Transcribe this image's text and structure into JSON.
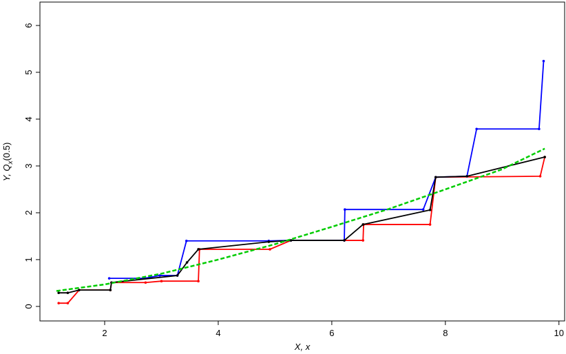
{
  "chart_data": {
    "type": "line",
    "xlabel": "X, x",
    "ylabel": {
      "main": "Y, Q",
      "sub": "x",
      "tail": "(0.5)"
    },
    "xlim": [
      0.86,
      10.1
    ],
    "ylim": [
      -0.31,
      6.5
    ],
    "xticks": [
      2,
      4,
      6,
      8,
      10
    ],
    "yticks": [
      0,
      1,
      2,
      3,
      4,
      5,
      6
    ],
    "series": [
      {
        "color": "#ff0000",
        "marker": true,
        "dash": false,
        "x": [
          1.19,
          1.35,
          1.55,
          2.1,
          2.12,
          2.72,
          3.0,
          3.65,
          3.67,
          4.91,
          5.28,
          6.22,
          6.55,
          6.56,
          7.73,
          7.83,
          9.67,
          9.75
        ],
        "values": [
          0.07,
          0.07,
          0.35,
          0.35,
          0.51,
          0.51,
          0.54,
          0.54,
          1.22,
          1.22,
          1.41,
          1.41,
          1.41,
          1.75,
          1.75,
          2.76,
          2.78,
          3.19
        ]
      },
      {
        "color": "#0000ff",
        "marker": true,
        "dash": false,
        "x": [
          2.08,
          2.7,
          2.97,
          3.28,
          3.44,
          4.89,
          5.28,
          6.22,
          6.23,
          7.61,
          7.83,
          8.38,
          8.55,
          9.65,
          9.73
        ],
        "values": [
          0.6,
          0.6,
          0.66,
          0.66,
          1.4,
          1.4,
          1.41,
          1.41,
          2.07,
          2.07,
          2.76,
          2.78,
          3.79,
          3.79,
          5.24
        ]
      },
      {
        "color": "#000000",
        "marker": true,
        "dash": false,
        "x": [
          1.19,
          1.35,
          1.55,
          2.1,
          2.12,
          3.28,
          3.45,
          3.65,
          4.89,
          5.28,
          6.22,
          6.55,
          7.73,
          7.83,
          8.38,
          9.75
        ],
        "values": [
          0.29,
          0.29,
          0.35,
          0.35,
          0.51,
          0.66,
          0.94,
          1.22,
          1.38,
          1.41,
          1.41,
          1.75,
          2.06,
          2.76,
          2.78,
          3.19
        ]
      },
      {
        "color": "#00cc00",
        "marker": false,
        "dash": true,
        "x": [
          1.15,
          2,
          3,
          4,
          5,
          6,
          7,
          8,
          9,
          9.75
        ],
        "values": [
          0.33,
          0.47,
          0.7,
          1.0,
          1.33,
          1.7,
          2.08,
          2.5,
          2.93,
          3.37
        ]
      }
    ]
  }
}
